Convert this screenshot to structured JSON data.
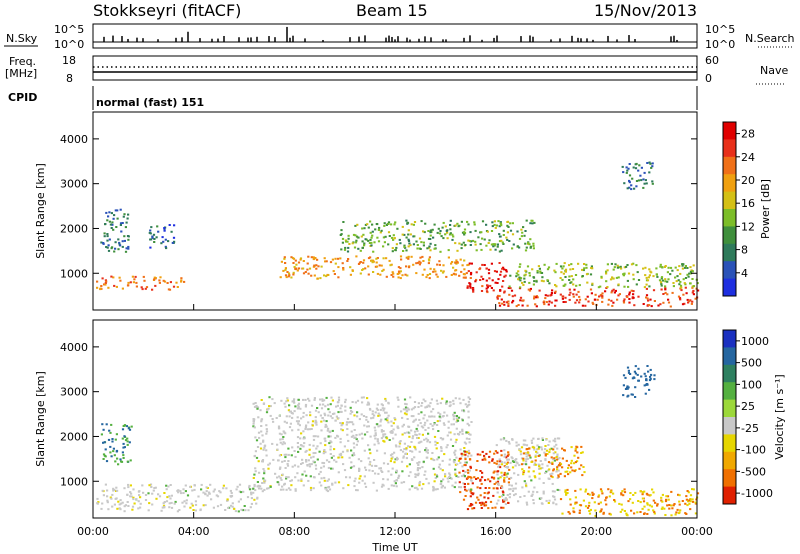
{
  "header": {
    "station": "Stokkseyri (fitACF)",
    "beam": "Beam 15",
    "date": "15/Nov/2013"
  },
  "nsky_panel": {
    "label": "N.Sky",
    "right_label": "N.Search",
    "yticks_left": [
      "10^5",
      "10^0"
    ],
    "yticks_right": [
      "10^5",
      "10^0"
    ]
  },
  "freq_panel": {
    "label_line1": "Freq.",
    "label_line2": "[MHz]",
    "yticks_left": [
      "18",
      "8"
    ],
    "yticks_right": [
      "60",
      "0"
    ],
    "right_label": "Nave"
  },
  "cpid_panel": {
    "label": "CPID",
    "mode": "normal (fast) 151"
  },
  "colors": {
    "power_scale": [
      "#1e2fe0",
      "#2a52b8",
      "#2e7a5a",
      "#3f8f3c",
      "#7cbd28",
      "#d4c015",
      "#f0a010",
      "#f07018",
      "#e8301a",
      "#e00000"
    ],
    "velocity_scale": [
      "#1a30c0",
      "#2566a0",
      "#2e8060",
      "#54b040",
      "#9cd83a",
      "#c8c8c8",
      "#e6d600",
      "#f0a800",
      "#f07000",
      "#e02000"
    ]
  },
  "chart_data": [
    {
      "type": "heatmap",
      "name": "power",
      "xlabel": "Time UT",
      "ylabel": "Slant Range [km]",
      "xticks": [
        "00:00",
        "04:00",
        "08:00",
        "12:00",
        "16:00",
        "20:00",
        "00:00"
      ],
      "xlim_hours": [
        0,
        24
      ],
      "yticks": [
        "1000",
        "2000",
        "3000",
        "4000"
      ],
      "ylim_km": [
        180,
        4600
      ],
      "colorbar": {
        "label": "Power [dB]",
        "ticks": [
          "4",
          "8",
          "12",
          "16",
          "20",
          "24",
          "28"
        ],
        "range": [
          0,
          30
        ]
      },
      "features": [
        {
          "t0": 0.1,
          "t1": 3.6,
          "r0": 650,
          "r1": 950,
          "level": 22
        },
        {
          "t0": 0.2,
          "t1": 1.4,
          "r0": 1500,
          "r1": 2450,
          "level": 7
        },
        {
          "t0": 2.2,
          "t1": 3.3,
          "r0": 1550,
          "r1": 2100,
          "level": 6
        },
        {
          "t0": 7.4,
          "t1": 15.0,
          "r0": 900,
          "r1": 1400,
          "level": 20
        },
        {
          "t0": 9.8,
          "t1": 17.5,
          "r0": 1500,
          "r1": 2200,
          "level": 12
        },
        {
          "t0": 14.8,
          "t1": 16.4,
          "r0": 600,
          "r1": 1300,
          "level": 27
        },
        {
          "t0": 16.0,
          "t1": 24.0,
          "r0": 280,
          "r1": 700,
          "level": 25
        },
        {
          "t0": 16.5,
          "t1": 24.0,
          "r0": 700,
          "r1": 1250,
          "level": 14
        },
        {
          "t0": 21.0,
          "t1": 22.3,
          "r0": 2900,
          "r1": 3500,
          "level": 8
        }
      ]
    },
    {
      "type": "heatmap",
      "name": "velocity",
      "xlabel": "Time UT",
      "ylabel": "Slant Range [km]",
      "xticks": [
        "00:00",
        "04:00",
        "08:00",
        "12:00",
        "16:00",
        "20:00",
        "00:00"
      ],
      "xlim_hours": [
        0,
        24
      ],
      "yticks": [
        "1000",
        "2000",
        "3000",
        "4000"
      ],
      "ylim_km": [
        180,
        4600
      ],
      "colorbar": {
        "label": "Velocity [m s⁻¹]",
        "ticks": [
          "1000",
          "500",
          "100",
          "25",
          "-25",
          "-100",
          "-500",
          "-1000"
        ],
        "range": [
          -1000,
          1000
        ]
      },
      "features": [
        {
          "t0": 0.1,
          "t1": 6.5,
          "r0": 350,
          "r1": 950,
          "level": 0
        },
        {
          "t0": 0.3,
          "t1": 1.5,
          "r0": 1400,
          "r1": 2300,
          "level": 100
        },
        {
          "t0": 6.3,
          "t1": 15.0,
          "r0": 800,
          "r1": 2900,
          "level": 0
        },
        {
          "t0": 14.5,
          "t1": 16.5,
          "r0": 400,
          "r1": 1700,
          "level": -500
        },
        {
          "t0": 16.0,
          "t1": 18.5,
          "r0": 500,
          "r1": 2000,
          "level": 0
        },
        {
          "t0": 17.0,
          "t1": 19.5,
          "r0": 1100,
          "r1": 1800,
          "level": -100
        },
        {
          "t0": 18.5,
          "t1": 24.0,
          "r0": 250,
          "r1": 850,
          "level": -100
        },
        {
          "t0": 21.0,
          "t1": 22.3,
          "r0": 2900,
          "r1": 3600,
          "level": 250
        }
      ]
    }
  ]
}
